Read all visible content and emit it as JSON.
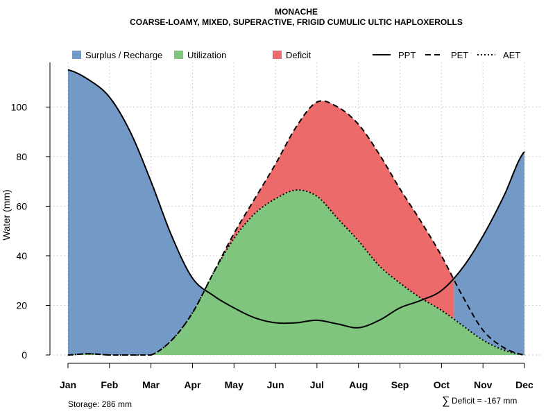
{
  "chart_data": {
    "type": "area",
    "title": "MONACHE",
    "subtitle": "COARSE-LOAMY, MIXED, SUPERACTIVE, FRIGID CUMULIC ULTIC HAPLOXEROLLS",
    "xlabel": "",
    "ylabel": "Water (mm)",
    "categories": [
      "Jan",
      "Feb",
      "Mar",
      "Apr",
      "May",
      "Jun",
      "Jul",
      "Aug",
      "Sep",
      "Oct",
      "Nov",
      "Dec"
    ],
    "ylim": [
      0,
      118
    ],
    "yticks": [
      0,
      20,
      40,
      60,
      80,
      100
    ],
    "grid": true,
    "series": [
      {
        "name": "PPT",
        "linestyle": "solid",
        "x": [
          1,
          1.5,
          2,
          2.5,
          3,
          3.5,
          4,
          4.5,
          5,
          5.5,
          6,
          6.5,
          7,
          7.5,
          8,
          8.5,
          9,
          9.5,
          10,
          10.5,
          11,
          11.5,
          12
        ],
        "values": [
          115,
          111,
          104,
          90,
          70,
          48,
          31,
          24,
          19,
          15,
          13,
          13,
          14,
          12.5,
          11,
          14,
          19,
          22,
          26,
          35,
          48,
          64,
          82
        ]
      },
      {
        "name": "PET",
        "linestyle": "dashed",
        "x": [
          1,
          1.5,
          2,
          2.5,
          3,
          3.5,
          4,
          4.5,
          5,
          5.5,
          6,
          6.5,
          7,
          7.5,
          8,
          8.5,
          9,
          9.5,
          10,
          10.5,
          11,
          11.5,
          12
        ],
        "values": [
          0,
          0.5,
          0,
          0,
          0,
          6,
          17,
          33,
          49,
          63,
          77,
          92,
          102,
          100,
          93,
          81,
          67,
          54,
          40,
          24,
          10,
          3,
          0
        ]
      },
      {
        "name": "AET",
        "linestyle": "dotted",
        "x": [
          1,
          1.5,
          2,
          2.5,
          3,
          3.5,
          4,
          4.5,
          5,
          5.5,
          6,
          6.5,
          7,
          7.5,
          8,
          8.5,
          9,
          9.5,
          10,
          10.5,
          11,
          11.5,
          12
        ],
        "values": [
          0,
          0.5,
          0,
          0,
          0,
          6,
          17,
          33,
          47,
          57,
          63,
          66.5,
          64,
          55,
          46,
          36,
          29,
          23,
          18,
          12,
          6,
          2,
          0
        ]
      }
    ],
    "areas": [
      {
        "name": "Surplus / Recharge",
        "color": "#7399c6",
        "between": [
          "PPT",
          "AET"
        ],
        "where": "PPT > PET"
      },
      {
        "name": "Utilization",
        "color": "#7fc57d",
        "between": [
          "AET",
          "zero"
        ]
      },
      {
        "name": "Deficit",
        "color": "#ec6a6a",
        "between": [
          "PET",
          "AET"
        ],
        "where": "PET > PPT"
      }
    ],
    "legend": {
      "placement": "top",
      "fills": [
        {
          "label": "Surplus / Recharge",
          "color": "#7399c6"
        },
        {
          "label": "Utilization",
          "color": "#7fc57d"
        },
        {
          "label": "Deficit",
          "color": "#ec6a6a"
        }
      ],
      "lines": [
        {
          "label": "PPT",
          "style": "solid"
        },
        {
          "label": "PET",
          "style": "dashed"
        },
        {
          "label": "AET",
          "style": "dotted"
        }
      ]
    },
    "annotations": {
      "storage": "Storage: 286 mm",
      "deficit_symbol": "∑",
      "deficit": "Deficit = -167 mm"
    }
  }
}
